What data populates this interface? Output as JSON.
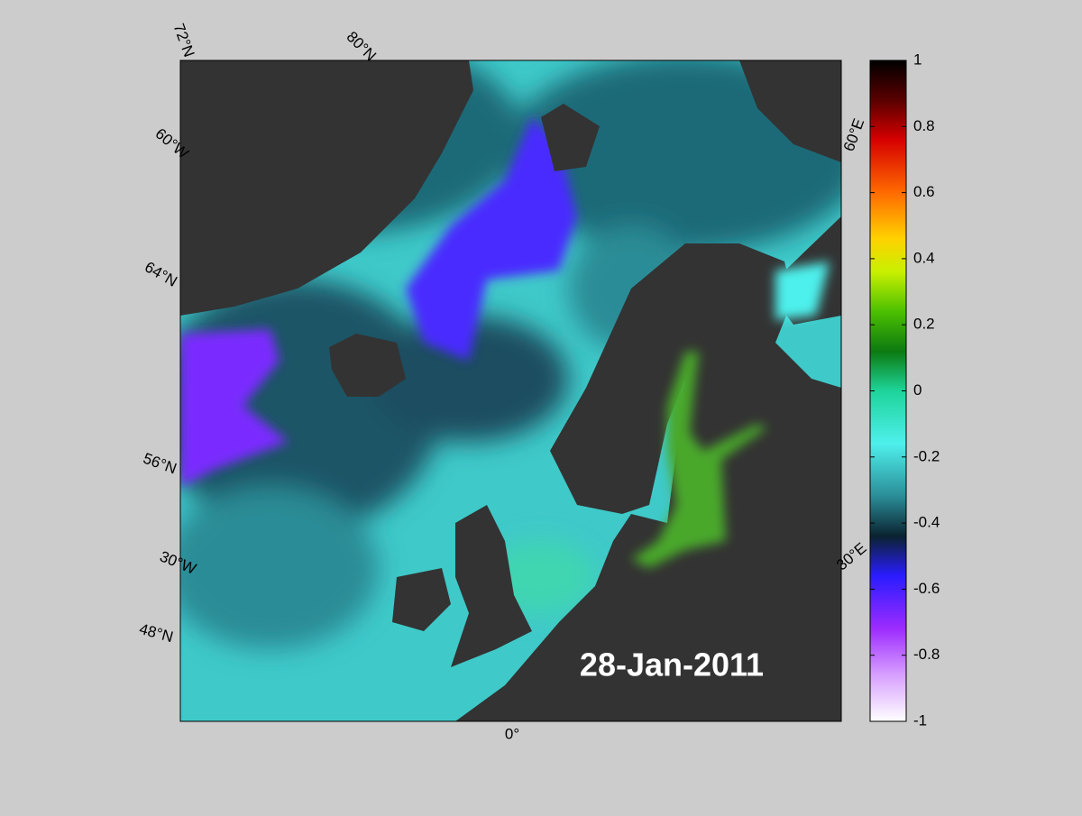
{
  "map": {
    "graticule_labels": [
      "72°N",
      "80°N",
      "60°W",
      "64°N",
      "56°N",
      "30°W",
      "48°N",
      "0°",
      "30°E",
      "60°E"
    ],
    "date": "28-Jan-2011",
    "colorbar": {
      "lim": [
        -1,
        1
      ],
      "ticks": [
        1,
        0.8,
        0.6,
        0.4,
        0.2,
        0,
        -0.2,
        -0.4,
        -0.6,
        -0.8,
        -1
      ]
    }
  }
}
